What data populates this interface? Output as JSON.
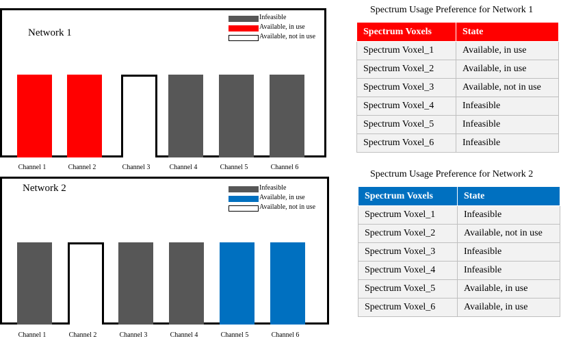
{
  "colors": {
    "infeasible": "#575757",
    "network1_in_use": "#ff0000",
    "network2_in_use": "#0070c0",
    "not_in_use": "#ffffff",
    "table1_header": "#ff0000",
    "table2_header": "#0070c0"
  },
  "legend": {
    "infeasible": "Infeasible",
    "in_use": "Available, in use",
    "not_in_use": "Available, not in use"
  },
  "channels": [
    "Channel 1",
    "Channel 2",
    "Channel 3",
    "Channel 4",
    "Channel 5",
    "Channel 6"
  ],
  "network1": {
    "title": "Network 1",
    "states": [
      "in_use",
      "in_use",
      "not_in_use",
      "infeasible",
      "infeasible",
      "infeasible"
    ]
  },
  "network2": {
    "title": "Network 2",
    "states": [
      "infeasible",
      "not_in_use",
      "infeasible",
      "infeasible",
      "in_use",
      "in_use"
    ]
  },
  "table1": {
    "title": "Spectrum Usage Preference for Network 1",
    "headers": [
      "Spectrum Voxels",
      "State"
    ],
    "rows": [
      [
        "Spectrum Voxel_1",
        "Available, in use"
      ],
      [
        "Spectrum Voxel_2",
        "Available, in use"
      ],
      [
        "Spectrum Voxel_3",
        "Available, not in use"
      ],
      [
        "Spectrum Voxel_4",
        "Infeasible"
      ],
      [
        "Spectrum Voxel_5",
        "Infeasible"
      ],
      [
        "Spectrum Voxel_6",
        "Infeasible"
      ]
    ]
  },
  "table2": {
    "title": "Spectrum Usage Preference for Network 2",
    "headers": [
      "Spectrum Voxels",
      "State"
    ],
    "rows": [
      [
        "Spectrum Voxel_1",
        "Infeasible"
      ],
      [
        "Spectrum Voxel_2",
        "Available, not in use"
      ],
      [
        "Spectrum Voxel_3",
        "Infeasible"
      ],
      [
        "Spectrum Voxel_4",
        "Infeasible"
      ],
      [
        "Spectrum Voxel_5",
        "Available, in use"
      ],
      [
        "Spectrum Voxel_6",
        "Available, in use"
      ]
    ]
  }
}
